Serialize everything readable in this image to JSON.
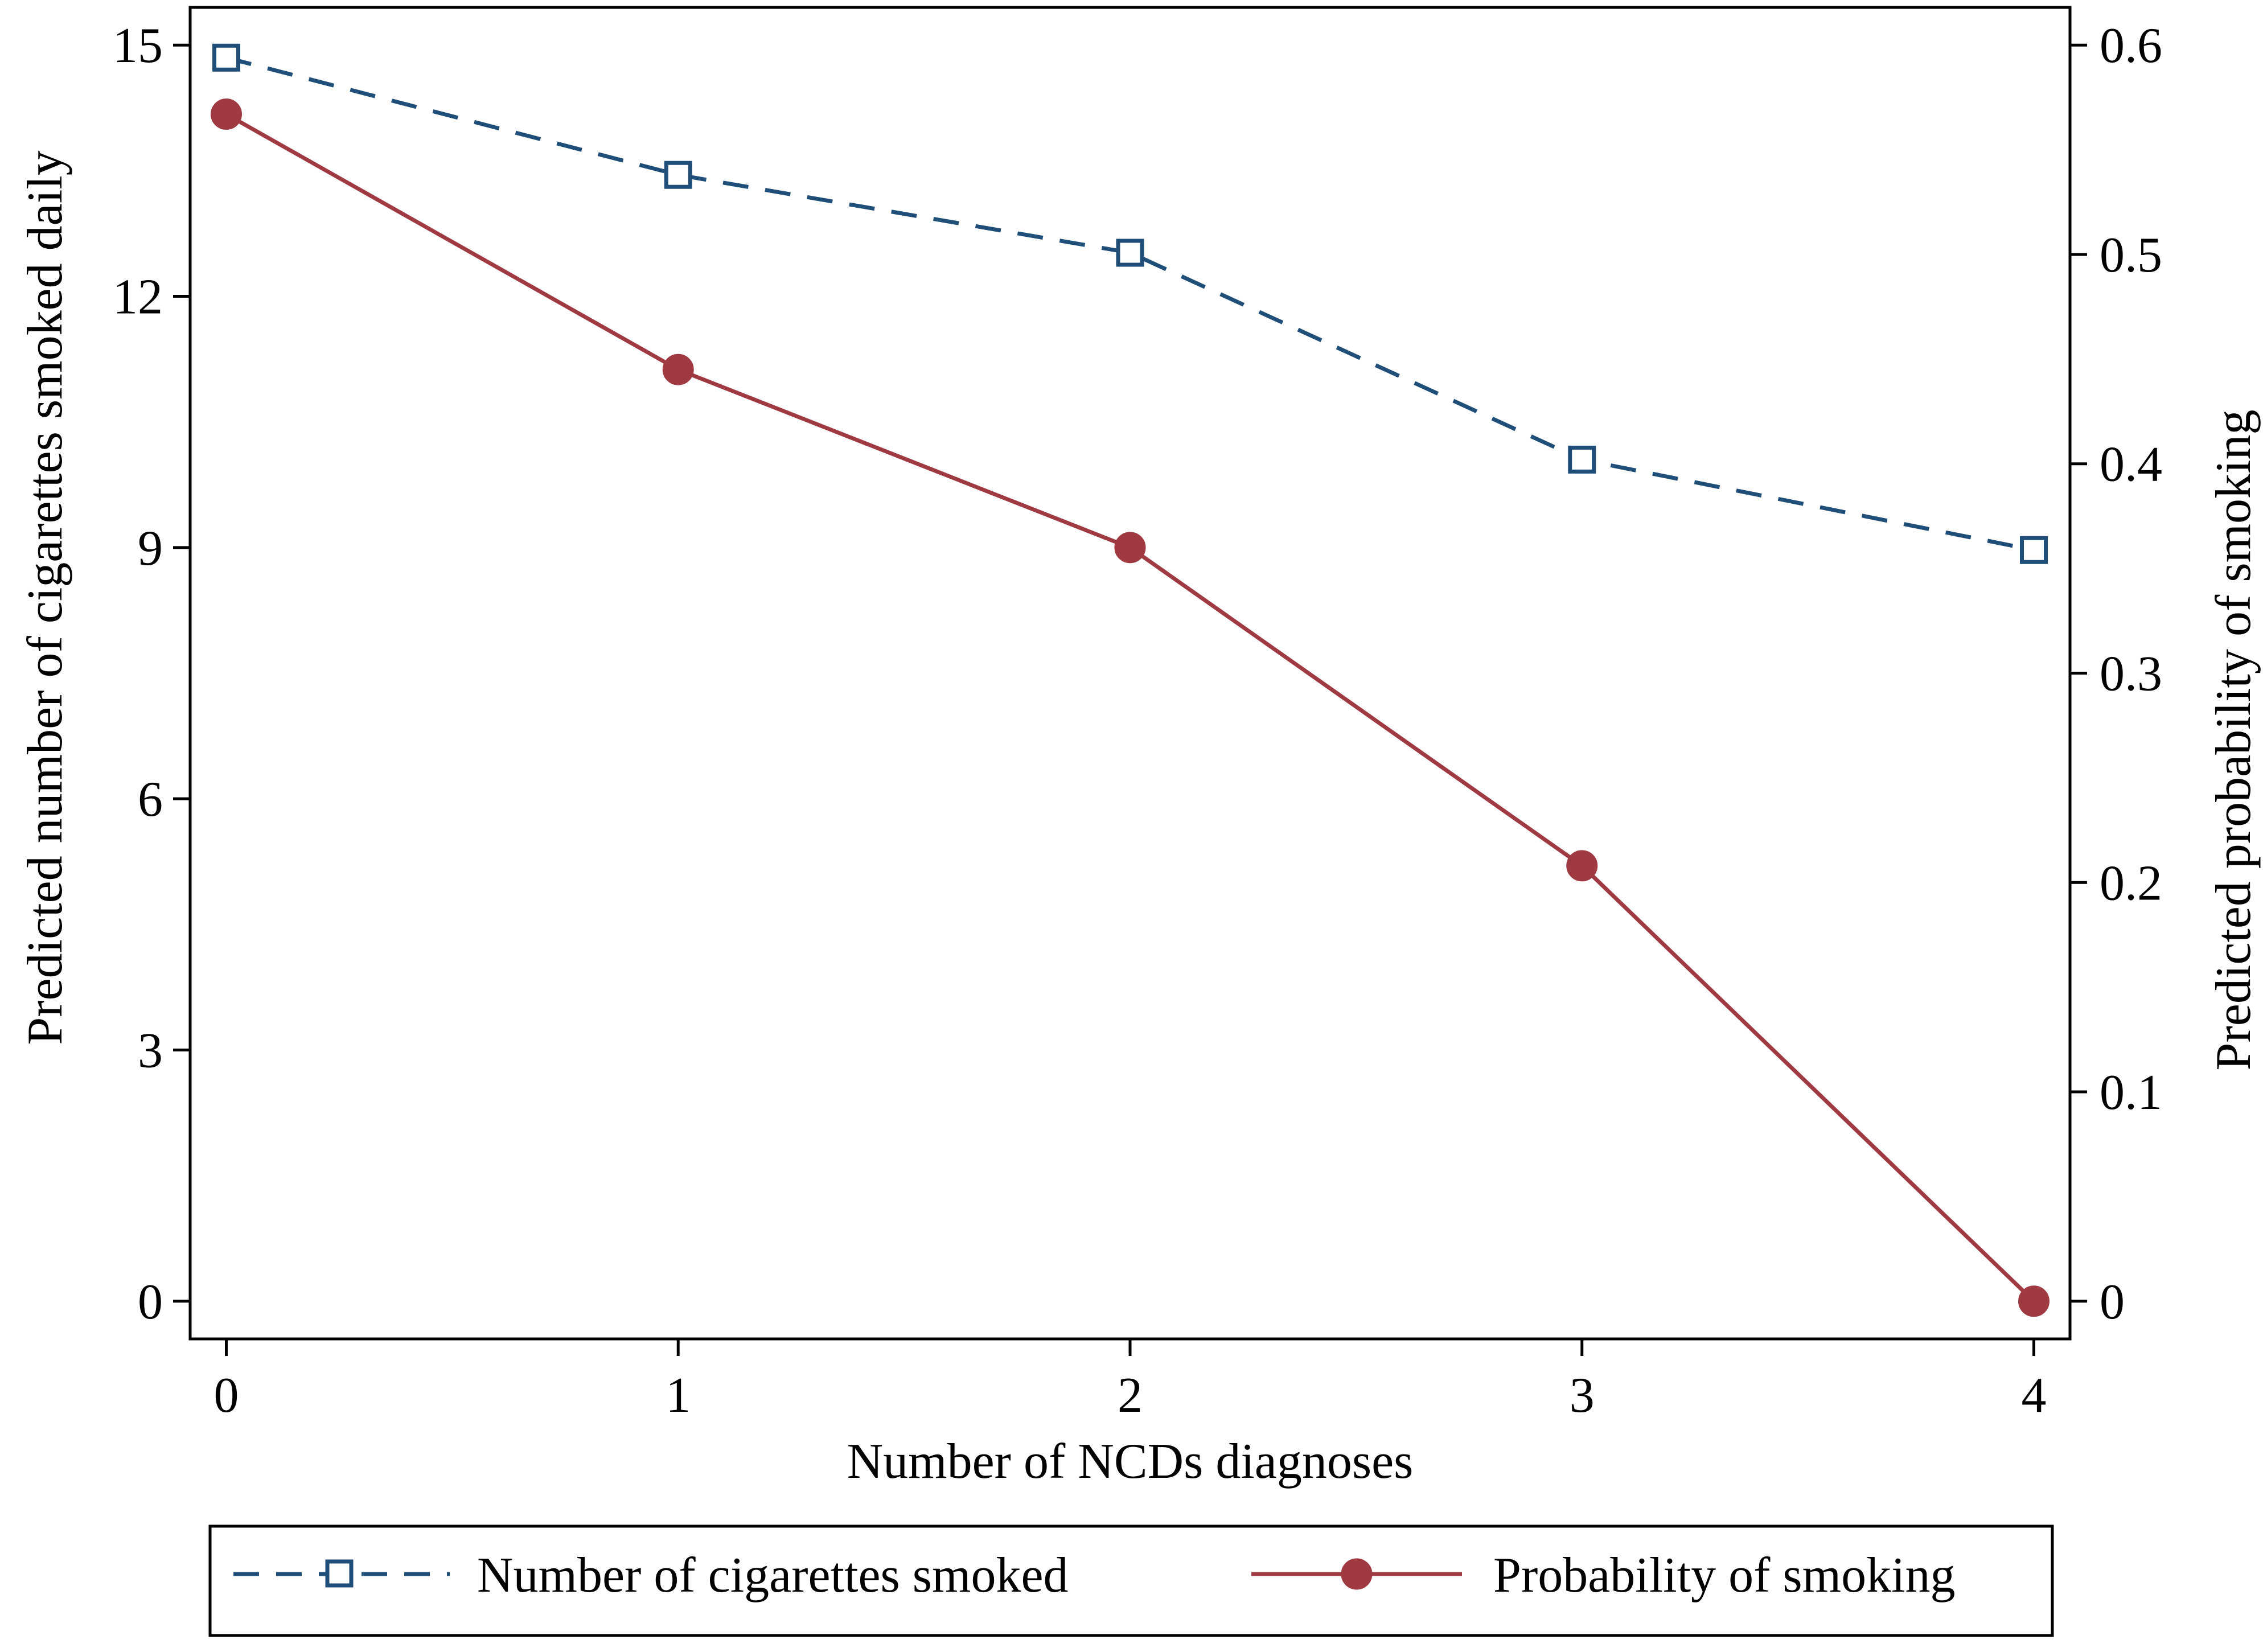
{
  "chart_data": {
    "type": "line",
    "title": "",
    "xlabel": "Number of NCDs diagnoses",
    "ylabel": "Predicted number of cigarettes smoked daily",
    "y2label": "Predicted probability of smoking",
    "x": [
      0,
      1,
      2,
      3,
      4
    ],
    "x_ticks": [
      "0",
      "1",
      "2",
      "3",
      "4"
    ],
    "xlim": [
      -0.08,
      4.08
    ],
    "ylim": [
      -0.45,
      15.45
    ],
    "y_ticks": [
      "0",
      "3",
      "6",
      "9",
      "12",
      "15"
    ],
    "y_tick_values": [
      0,
      3,
      6,
      9,
      12,
      15
    ],
    "y2lim": [
      -0.018,
      0.618
    ],
    "y2_ticks": [
      "0",
      "0.1",
      "0.2",
      "0.3",
      "0.4",
      "0.5",
      "0.6"
    ],
    "y2_tick_values": [
      0,
      0.1,
      0.2,
      0.3,
      0.4,
      0.5,
      0.6
    ],
    "grid": false,
    "legend_position": "bottom",
    "series": [
      {
        "name": "Number of cigarettes smoked",
        "axis": "left",
        "values": [
          14.85,
          13.45,
          12.52,
          10.05,
          8.97
        ],
        "color": "#1f4e79",
        "line_style": "dashed",
        "marker": "hollow-square"
      },
      {
        "name": "Probability of smoking",
        "axis": "right",
        "values": [
          0.567,
          0.445,
          0.36,
          0.208,
          0.0
        ],
        "color": "#a03a42",
        "line_style": "solid",
        "marker": "filled-circle"
      }
    ]
  }
}
